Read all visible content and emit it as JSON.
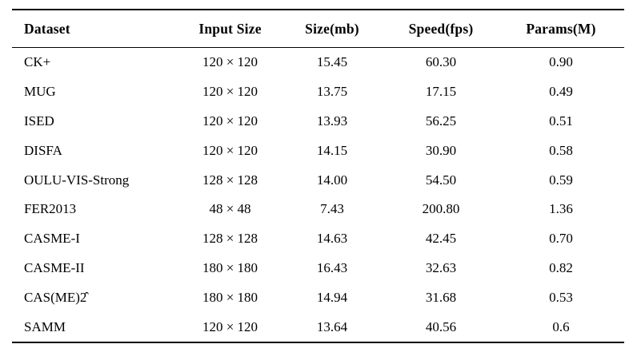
{
  "table": {
    "title": "dataset-benchmark-table",
    "columns": [
      {
        "key": "dataset",
        "label": "Dataset",
        "align": "left"
      },
      {
        "key": "input-size",
        "label": "Input Size",
        "align": "center"
      },
      {
        "key": "size-mb",
        "label": "Size(mb)",
        "align": "center"
      },
      {
        "key": "speed-fps",
        "label": "Speed(fps)",
        "align": "center"
      },
      {
        "key": "params-m",
        "label": "Params(M)",
        "align": "center"
      }
    ],
    "rows": [
      [
        "CK+",
        "120 × 120",
        "15.45",
        "60.30",
        "0.90"
      ],
      [
        "MUG",
        "120 × 120",
        "13.75",
        "17.15",
        "0.49"
      ],
      [
        "ISED",
        "120 × 120",
        "13.93",
        "56.25",
        "0.51"
      ],
      [
        "DISFA",
        "120 × 120",
        "14.15",
        "30.90",
        "0.58"
      ],
      [
        "OULU-VIS-Strong",
        "128 × 128",
        "14.00",
        "54.50",
        "0.59"
      ],
      [
        "FER2013",
        "48 × 48",
        "7.43",
        "200.80",
        "1.36"
      ],
      [
        "CASME-I",
        "128 × 128",
        "14.63",
        "42.45",
        "0.70"
      ],
      [
        "CASME-II",
        "180 × 180",
        "16.43",
        "32.63",
        "0.82"
      ],
      [
        "CAS(ME)2̂",
        "180 × 180",
        "14.94",
        "31.68",
        "0.53"
      ],
      [
        "SAMM",
        "120 × 120",
        "13.64",
        "40.56",
        "0.6"
      ]
    ],
    "colors": {
      "text": "#000000",
      "background": "#ffffff",
      "rule": "#000000"
    }
  }
}
